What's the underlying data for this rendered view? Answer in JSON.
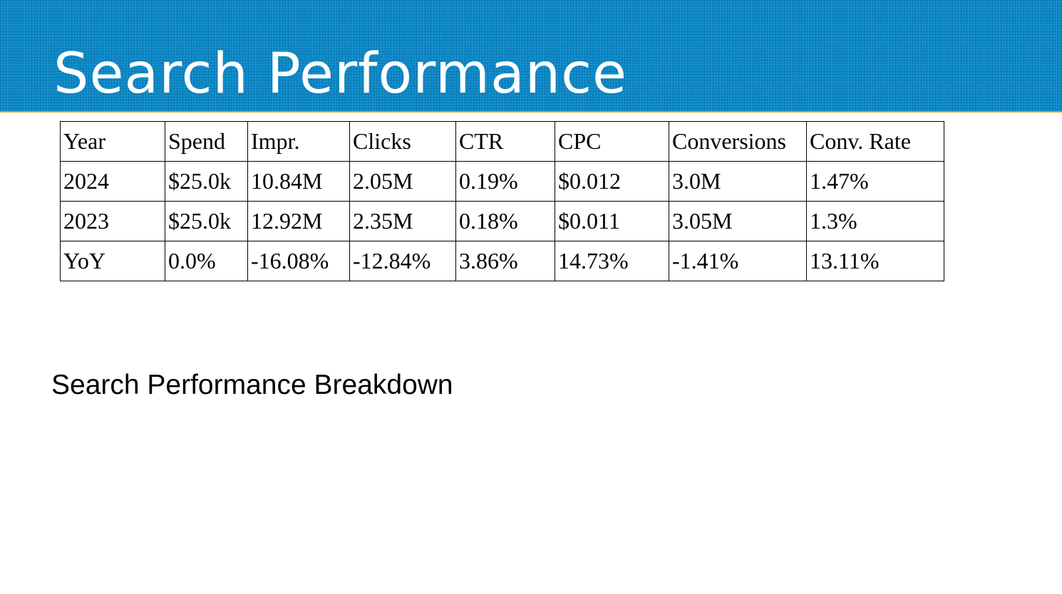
{
  "header": {
    "title": "Search Performance",
    "background_color": "#1190d0",
    "accent_line_color": "#d9a13a"
  },
  "table": {
    "columns": [
      "Year",
      "Spend",
      "Impr.",
      "Clicks",
      "CTR",
      "CPC",
      "Conversions",
      "Conv. Rate"
    ],
    "rows": [
      [
        "2024",
        "$25.0k",
        "10.84M",
        "2.05M",
        "0.19%",
        "$0.012",
        "3.0M",
        "1.47%"
      ],
      [
        "2023",
        "$25.0k",
        "12.92M",
        "2.35M",
        "0.18%",
        "$0.011",
        "3.05M",
        "1.3%"
      ],
      [
        "YoY",
        "0.0%",
        "-16.08%",
        "-12.84%",
        "3.86%",
        "14.73%",
        "-1.41%",
        "13.11%"
      ]
    ]
  },
  "breakdown": {
    "title": "Search Performance Breakdown"
  }
}
